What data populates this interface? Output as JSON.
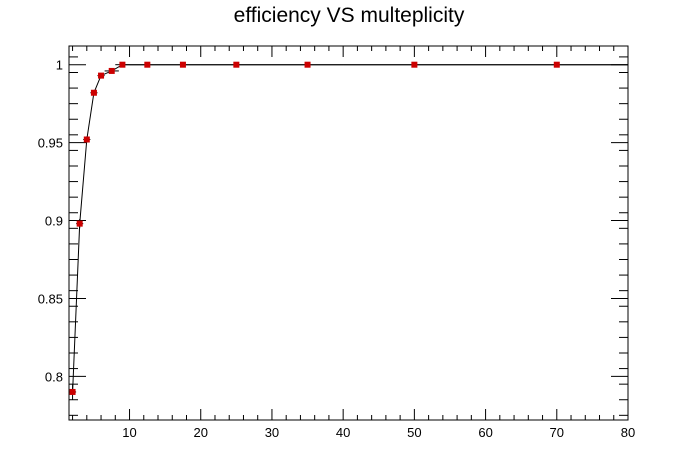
{
  "chart_data": {
    "type": "scatter",
    "title": "efficiency VS multeplicity",
    "xlabel": "",
    "ylabel": "",
    "xlim": [
      1.5,
      80
    ],
    "ylim": [
      0.772,
      1.012
    ],
    "x_ticks": [
      10,
      20,
      30,
      40,
      50,
      60,
      70,
      80
    ],
    "y_ticks": [
      0.8,
      0.85,
      0.9,
      0.95,
      1
    ],
    "y_tick_labels": [
      "0.8",
      "0.85",
      "0.9",
      "0.95",
      "1"
    ],
    "grid": false,
    "series": [
      {
        "marker_color": "#cc0000",
        "line_color": "#000000",
        "points": [
          {
            "x": 2,
            "y": 0.79,
            "xerr": 0.5,
            "yerr": 0.005
          },
          {
            "x": 3,
            "y": 0.898,
            "xerr": 0.5,
            "yerr": 0.003
          },
          {
            "x": 4,
            "y": 0.952,
            "xerr": 0.5,
            "yerr": 0.002
          },
          {
            "x": 5,
            "y": 0.982,
            "xerr": 0.5,
            "yerr": 0.001
          },
          {
            "x": 6,
            "y": 0.993,
            "xerr": 0.5,
            "yerr": 0.001
          },
          {
            "x": 7.5,
            "y": 0.996,
            "xerr": 1.0,
            "yerr": 0.001
          },
          {
            "x": 9,
            "y": 1.0,
            "xerr": 1.0,
            "yerr": 0.0005
          },
          {
            "x": 12.5,
            "y": 1.0,
            "xerr": 2.5,
            "yerr": 0.0003
          },
          {
            "x": 17.5,
            "y": 1.0,
            "xerr": 2.5,
            "yerr": 0.0003
          },
          {
            "x": 25,
            "y": 1.0,
            "xerr": 5,
            "yerr": 0.0002
          },
          {
            "x": 35,
            "y": 1.0,
            "xerr": 5,
            "yerr": 0.0002
          },
          {
            "x": 50,
            "y": 1.0,
            "xerr": 10,
            "yerr": 0.0002
          },
          {
            "x": 70,
            "y": 1.0,
            "xerr": 10,
            "yerr": 0.0002
          }
        ]
      }
    ]
  }
}
